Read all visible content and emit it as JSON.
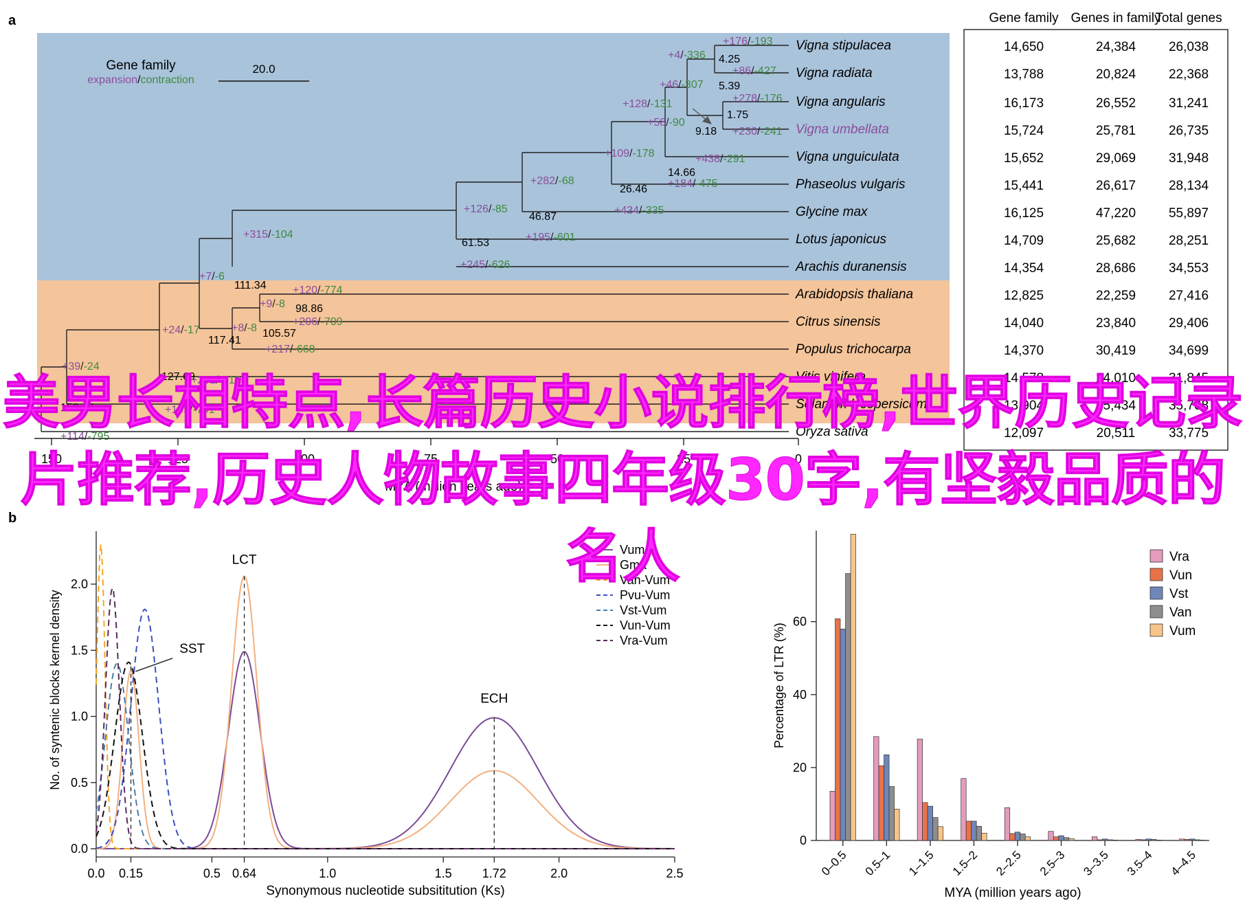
{
  "panel_labels": {
    "a": "a",
    "b": "b"
  },
  "tree": {
    "legend_title": "Gene family",
    "legend_expansion": "expansion",
    "legend_slash": "/",
    "legend_contraction": "contraction",
    "scale_label": "20.0",
    "axis_label": "MYA (million years ago)",
    "axis_ticks": [
      "150",
      "125",
      "100",
      "75",
      "50",
      "25",
      "0"
    ],
    "colors": {
      "legume_bg": "#a9c3db",
      "other_bg": "#f4c49a",
      "expansion": "#8b4d9c",
      "contraction": "#3e8a3e"
    },
    "species": [
      "Vigna stipulacea",
      "Vigna radiata",
      "Vigna angularis",
      "Vigna umbellata",
      "Vigna unguiculata",
      "Phaseolus vulgaris",
      "Glycine max",
      "Lotus japonicus",
      "Arachis duranensis",
      "Arabidopsis thaliana",
      "Citrus sinensis",
      "Populus trichocarpa",
      "Vitis vinifera",
      "Solanum lycopersicum",
      "Oryza sativa"
    ],
    "node_ages": [
      "4.25",
      "5.39",
      "1.75",
      "9.18",
      "14.66",
      "26.46",
      "46.87",
      "61.53",
      "111.34",
      "98.86",
      "105.57",
      "117.41",
      "127.69",
      "150.13"
    ],
    "branch_changes": [
      {
        "e": "+176",
        "c": "193"
      },
      {
        "e": "+4",
        "c": "336"
      },
      {
        "e": "+86",
        "c": "427"
      },
      {
        "e": "+46",
        "c": "307"
      },
      {
        "e": "+278",
        "c": "176"
      },
      {
        "e": "+128",
        "c": "131"
      },
      {
        "e": "+58",
        "c": "90"
      },
      {
        "e": "+230",
        "c": "241"
      },
      {
        "e": "+438",
        "c": "291"
      },
      {
        "e": "+109",
        "c": "178"
      },
      {
        "e": "+184",
        "c": "475"
      },
      {
        "e": "+282",
        "c": "68"
      },
      {
        "e": "+434",
        "c": "335"
      },
      {
        "e": "+126",
        "c": "85"
      },
      {
        "e": "+195",
        "c": "601"
      },
      {
        "e": "+315",
        "c": "104"
      },
      {
        "e": "+245",
        "c": "626"
      },
      {
        "e": "+7",
        "c": "6"
      },
      {
        "e": "+120",
        "c": "774"
      },
      {
        "e": "+9",
        "c": "8"
      },
      {
        "e": "+206",
        "c": "709"
      },
      {
        "e": "+8",
        "c": "8"
      },
      {
        "e": "+217",
        "c": "668"
      },
      {
        "e": "+24",
        "c": "17"
      },
      {
        "e": "+39",
        "c": "24"
      },
      {
        "e": "+201",
        "c": "615"
      },
      {
        "e": "+195",
        "c": "701"
      },
      {
        "e": "+114",
        "c": "795"
      }
    ]
  },
  "table": {
    "headers": [
      "Gene family",
      "Genes in family",
      "Total genes"
    ],
    "rows": [
      [
        "14,650",
        "24,384",
        "26,038"
      ],
      [
        "13,788",
        "20,824",
        "22,368"
      ],
      [
        "16,173",
        "26,552",
        "31,241"
      ],
      [
        "15,724",
        "25,781",
        "26,735"
      ],
      [
        "15,652",
        "29,069",
        "31,948"
      ],
      [
        "15,441",
        "26,617",
        "28,134"
      ],
      [
        "16,125",
        "47,220",
        "55,897"
      ],
      [
        "14,709",
        "25,682",
        "28,251"
      ],
      [
        "14,354",
        "28,686",
        "34,553"
      ],
      [
        "12,825",
        "22,259",
        "27,416"
      ],
      [
        "14,040",
        "23,840",
        "29,406"
      ],
      [
        "14,370",
        "30,419",
        "34,699"
      ],
      [
        "14,578",
        "24,010",
        "31,845"
      ],
      [
        "13,904",
        "25,434",
        "35,768"
      ],
      [
        "12,097",
        "20,511",
        "33,775"
      ]
    ]
  },
  "overlay_title": "美男长相特点,长篇历史小说排行榜,世界历史记录片推荐,历史人物故事四年级30字,有坚毅品质的名人",
  "chart_data": [
    {
      "type": "line",
      "title": "",
      "xlabel": "Synonymous nucleotide subsititution (Ks)",
      "ylabel": "No. of syntenic blocks kernel density",
      "xlim": [
        0,
        2.5
      ],
      "ylim": [
        0,
        2.4
      ],
      "x_ticks": [
        "0.0",
        "0.15",
        "0.5",
        "0.64",
        "1.0",
        "1.5",
        "1.72",
        "2.0",
        "2.5"
      ],
      "y_ticks": [
        "0.0",
        "0.5",
        "1.0",
        "1.5",
        "2.0"
      ],
      "annotations": [
        "LCT",
        "SST",
        "ECH"
      ],
      "legend": "top-right",
      "series": [
        {
          "name": "Vum",
          "color": "#7b4a96",
          "dash": false,
          "components": [
            [
              0.64,
              1.49,
              0.068
            ],
            [
              1.72,
              0.99,
              0.19
            ]
          ]
        },
        {
          "name": "Gma",
          "color": "#f2b07f",
          "dash": false,
          "components": [
            [
              0.64,
              2.06,
              0.055
            ],
            [
              0.15,
              1.35,
              0.035
            ],
            [
              1.72,
              0.59,
              0.19
            ]
          ]
        },
        {
          "name": "Van-Vum",
          "color": "#f5a623",
          "dash": true,
          "components": [
            [
              0.02,
              2.3,
              0.018
            ]
          ]
        },
        {
          "name": "Pvu-Vum",
          "color": "#3b4fbf",
          "dash": true,
          "components": [
            [
              0.21,
              1.81,
              0.06
            ]
          ]
        },
        {
          "name": "Vst-Vum",
          "color": "#4a7ca8",
          "dash": true,
          "components": [
            [
              0.09,
              1.4,
              0.05
            ]
          ]
        },
        {
          "name": "Vun-Vum",
          "color": "#111111",
          "dash": true,
          "components": [
            [
              0.14,
              1.41,
              0.06
            ]
          ]
        },
        {
          "name": "Vra-Vum",
          "color": "#5a2a5e",
          "dash": true,
          "components": [
            [
              0.07,
              1.97,
              0.03
            ]
          ]
        }
      ]
    },
    {
      "type": "bar",
      "title": "",
      "xlabel": "MYA (million years ago)",
      "ylabel": "Percentage of LTR (%)",
      "ylim": [
        0,
        85
      ],
      "y_ticks": [
        "0",
        "20",
        "40",
        "60"
      ],
      "legend": "top-right",
      "categories": [
        "0–0.5",
        "0.5–1",
        "1–1.5",
        "1.5–2",
        "2–2.5",
        "2.5–3",
        "3–3.5",
        "3.5–4",
        "4–4.5"
      ],
      "series": [
        {
          "name": "Vra",
          "color": "#e59bbd",
          "values": [
            13.5,
            28.5,
            27.8,
            17.0,
            9.0,
            2.5,
            1.0,
            0.3,
            0.4
          ]
        },
        {
          "name": "Vun",
          "color": "#e8734a",
          "values": [
            60.8,
            20.5,
            10.4,
            5.3,
            1.9,
            1.0,
            0.2,
            0.2,
            0.3
          ]
        },
        {
          "name": "Vst",
          "color": "#6f86b9",
          "values": [
            58.0,
            23.5,
            9.4,
            5.3,
            2.3,
            1.3,
            0.4,
            0.4,
            0.4
          ]
        },
        {
          "name": "Van",
          "color": "#8e8e8e",
          "values": [
            73.2,
            14.8,
            6.3,
            3.9,
            1.8,
            0.8,
            0.2,
            0.3,
            0.2
          ]
        },
        {
          "name": "Vum",
          "color": "#f7c58a",
          "values": [
            84.0,
            8.6,
            3.8,
            2.0,
            1.0,
            0.5,
            0.1,
            0.1,
            0.1
          ]
        }
      ]
    }
  ]
}
